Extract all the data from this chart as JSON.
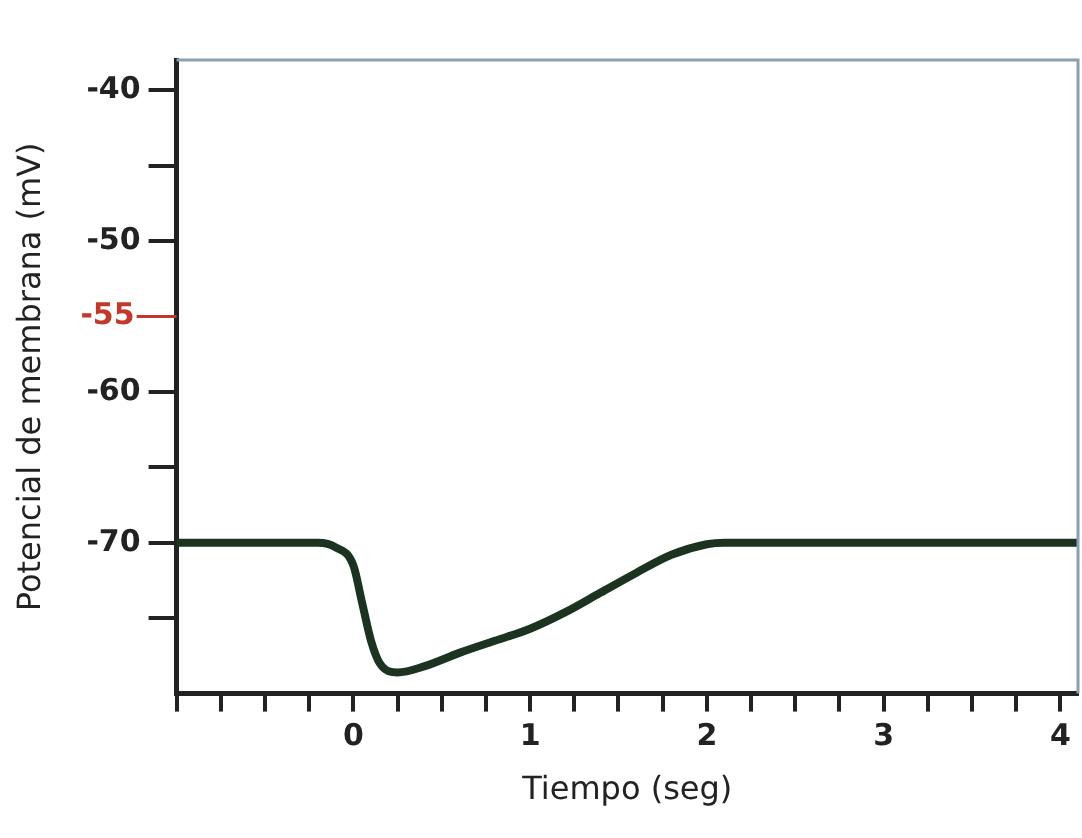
{
  "chart_data": {
    "type": "line",
    "xlabel": "Tiempo (seg)",
    "ylabel": "Potencial de membrana (mV)",
    "x": [
      -1,
      -0.2,
      -0.1,
      0,
      0.05,
      0.1,
      0.15,
      0.25,
      0.4,
      0.6,
      0.8,
      1,
      1.2,
      1.4,
      1.6,
      1.8,
      2,
      2.1,
      4.1
    ],
    "series": [
      {
        "color": "#1b3320",
        "values": [
          -70,
          -70,
          -70.3,
          -71.5,
          -74,
          -76.5,
          -78,
          -78.6,
          -78.2,
          -77.3,
          -76.5,
          -75.7,
          -74.6,
          -73.3,
          -72,
          -70.8,
          -70.1,
          -70,
          -70
        ]
      }
    ],
    "xlim": [
      -1,
      4.1
    ],
    "xticks": [
      {
        "value": -1,
        "label": null
      },
      {
        "value": -0.75,
        "label": null
      },
      {
        "value": -0.5,
        "label": null
      },
      {
        "value": -0.25,
        "label": null
      },
      0,
      {
        "value": 0.25,
        "label": null
      },
      {
        "value": 0.5,
        "label": null
      },
      {
        "value": 0.75,
        "label": null
      },
      1,
      {
        "value": 1.25,
        "label": null
      },
      {
        "value": 1.5,
        "label": null
      },
      {
        "value": 1.75,
        "label": null
      },
      2,
      {
        "value": 2.25,
        "label": null
      },
      {
        "value": 2.5,
        "label": null
      },
      {
        "value": 2.75,
        "label": null
      },
      3,
      {
        "value": 3.25,
        "label": null
      },
      {
        "value": 3.5,
        "label": null
      },
      {
        "value": 3.75,
        "label": null
      },
      4
    ],
    "ylim": [
      -80,
      -38
    ],
    "yticks": [
      {
        "value": -75,
        "label": null
      },
      -70,
      {
        "value": -65,
        "label": null
      },
      -60,
      -50,
      {
        "value": -45,
        "label": null
      },
      -40
    ],
    "ref_lines": [
      {
        "axis": "y",
        "value": -55,
        "label": "-55",
        "color": "#c0392b"
      }
    ],
    "grid": false,
    "legend": false,
    "marker": "none",
    "line_style": "solid"
  }
}
